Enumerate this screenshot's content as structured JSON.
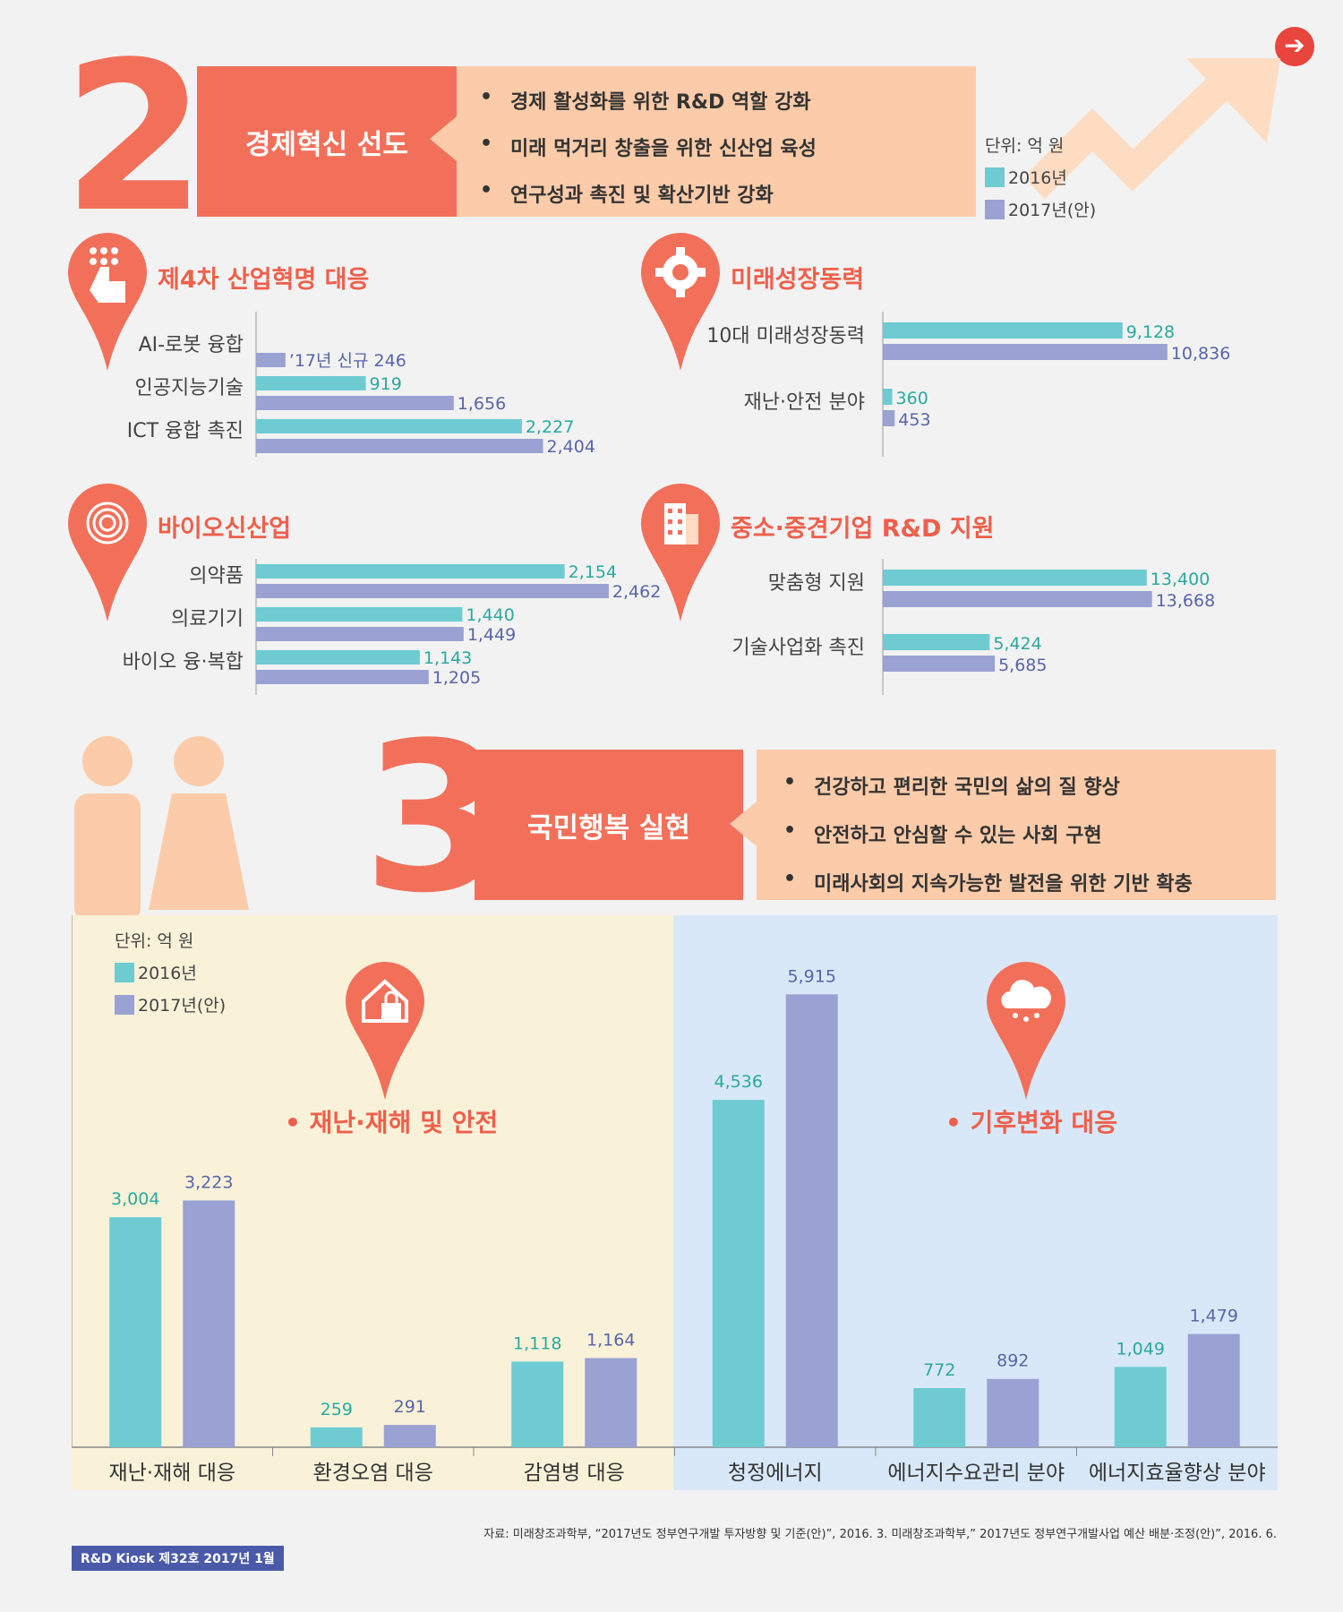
{
  "nav": {
    "icon": "arrow-right-icon"
  },
  "section2": {
    "number": "2",
    "title": "경제혁신 선도",
    "goals": [
      "경제 활성화를 위한 R&D 역할 강화",
      "미래 먹거리 창출을 위한 신산업 육성",
      "연구성과 촉진 및 확산기반 강화"
    ]
  },
  "legend": {
    "unit": "단위: 억 원",
    "series1": "2016년",
    "series2": "2017년(안)"
  },
  "colors": {
    "series1": "#6ecbd2",
    "series2": "#9aa1d3",
    "accent": "#f2705a"
  },
  "section3": {
    "number": "3",
    "title": "국민행복 실현",
    "goals": [
      "건강하고 편리한 국민의 삶의 질 향상",
      "안전하고 안심할 수 있는 사회 구현",
      "미래사회의 지속가능한 발전을 위한 기반 확충"
    ],
    "group1_title": "• 재난·재해 및 안전",
    "group2_title": "• 기후변화 대응"
  },
  "footer": {
    "source": "자료: 미래창조과학부, “2017년도 정부연구개발 투자방향 및 기준(안)”, 2016. 3. 미래창조과학부,” 2017년도 정부연구개발사업 예산 배분·조정(안)”, 2016. 6.",
    "badge": "R&D Kiosk 제32호 2017년 1월"
  },
  "chart_data": [
    {
      "type": "bar",
      "orientation": "horizontal",
      "title": "제4차 산업혁명 대응",
      "icon": "touch-keypad-icon",
      "categories": [
        "AI-로봇 융합",
        "인공지능기술",
        "ICT 융합 촉진"
      ],
      "series": [
        {
          "name": "2016년",
          "values": [
            null,
            919,
            2227
          ]
        },
        {
          "name": "2017년(안)",
          "values": [
            246,
            1656,
            2404
          ]
        }
      ],
      "annotations": [
        "’17년 신규 246"
      ],
      "xlim": [
        0,
        3000
      ]
    },
    {
      "type": "bar",
      "orientation": "horizontal",
      "title": "미래성장동력",
      "icon": "gear-icon",
      "categories": [
        "10대 미래성장동력",
        "재난·안전 분야"
      ],
      "series": [
        {
          "name": "2016년",
          "values": [
            9128,
            360
          ]
        },
        {
          "name": "2017년(안)",
          "values": [
            10836,
            453
          ]
        }
      ],
      "xlim": [
        0,
        12000
      ]
    },
    {
      "type": "bar",
      "orientation": "horizontal",
      "title": "바이오신산업",
      "icon": "fingerprint-icon",
      "categories": [
        "의약품",
        "의료기기",
        "바이오 융·복합"
      ],
      "series": [
        {
          "name": "2016년",
          "values": [
            2154,
            1440,
            1143
          ]
        },
        {
          "name": "2017년(안)",
          "values": [
            2462,
            1449,
            1205
          ]
        }
      ],
      "xlim": [
        0,
        2500
      ]
    },
    {
      "type": "bar",
      "orientation": "horizontal",
      "title": "중소·중견기업 R&D 지원",
      "icon": "building-icon",
      "categories": [
        "맞춤형 지원",
        "기술사업화 촉진"
      ],
      "series": [
        {
          "name": "2016년",
          "values": [
            13400,
            5424
          ]
        },
        {
          "name": "2017년(안)",
          "values": [
            13668,
            5685
          ]
        }
      ],
      "xlim": [
        0,
        16000
      ]
    },
    {
      "type": "bar",
      "orientation": "vertical",
      "title": "국민행복 실현",
      "categories": [
        "재난·재해 대응",
        "환경오염 대응",
        "감염병 대응",
        "청정에너지",
        "에너지수요관리 분야",
        "에너지효율향상 분야"
      ],
      "series": [
        {
          "name": "2016년",
          "values": [
            3004,
            259,
            1118,
            4536,
            772,
            1049
          ]
        },
        {
          "name": "2017년(안)",
          "values": [
            3223,
            291,
            1164,
            5915,
            892,
            1479
          ]
        }
      ],
      "ylim": [
        0,
        6000
      ]
    }
  ]
}
